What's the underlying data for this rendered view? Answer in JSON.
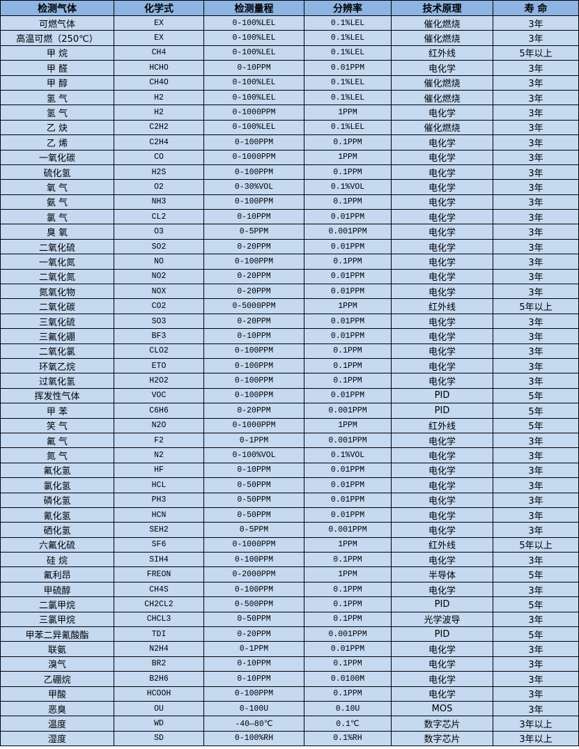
{
  "colors": {
    "header_bg": "#8db4e2",
    "row_bg": "#c5d9f1",
    "border": "#000000"
  },
  "table": {
    "headers": [
      "检测气体",
      "化学式",
      "检测量程",
      "分辨率",
      "技术原理",
      "寿 命"
    ],
    "rows": [
      [
        "可燃气体",
        "EX",
        "0-100%LEL",
        "0.1%LEL",
        "催化燃烧",
        "3年"
      ],
      [
        "高温可燃（250℃）",
        "EX",
        "0-100%LEL",
        "0.1%LEL",
        "催化燃烧",
        "3年"
      ],
      [
        "甲 烷",
        "CH4",
        "0-100%LEL",
        "0.1%LEL",
        "红外线",
        "5年以上"
      ],
      [
        "甲 醛",
        "HCHO",
        "0-10PPM",
        "0.01PPM",
        "电化学",
        "3年"
      ],
      [
        "甲 醇",
        "CH4O",
        "0-100%LEL",
        "0.1%LEL",
        "催化燃烧",
        "3年"
      ],
      [
        "氢 气",
        "H2",
        "0-100%LEL",
        "0.1%LEL",
        "催化燃烧",
        "3年"
      ],
      [
        "氢 气",
        "H2",
        "0-1000PPM",
        "1PPM",
        "电化学",
        "3年"
      ],
      [
        "乙 炔",
        "C2H2",
        "0-100%LEL",
        "0.1%LEL",
        "催化燃烧",
        "3年"
      ],
      [
        "乙 烯",
        "C2H4",
        "0-100PPM",
        "0.1PPM",
        "电化学",
        "3年"
      ],
      [
        "一氧化碳",
        "CO",
        "0-1000PPM",
        "1PPM",
        "电化学",
        "3年"
      ],
      [
        "硫化氢",
        "H2S",
        "0-100PPM",
        "0.1PPM",
        "电化学",
        "3年"
      ],
      [
        "氧 气",
        "O2",
        "0-30%VOL",
        "0.1%VOL",
        "电化学",
        "3年"
      ],
      [
        "氨 气",
        "NH3",
        "0-100PPM",
        "0.1PPM",
        "电化学",
        "3年"
      ],
      [
        "氯 气",
        "CL2",
        "0-10PPM",
        "0.01PPM",
        "电化学",
        "3年"
      ],
      [
        "臭 氧",
        "O3",
        "0-5PPM",
        "0.001PPM",
        "电化学",
        "3年"
      ],
      [
        "二氧化硫",
        "SO2",
        "0-20PPM",
        "0.01PPM",
        "电化学",
        "3年"
      ],
      [
        "一氧化氮",
        "NO",
        "0-100PPM",
        "0.1PPM",
        "电化学",
        "3年"
      ],
      [
        "二氧化氮",
        "NO2",
        "0-20PPM",
        "0.01PPM",
        "电化学",
        "3年"
      ],
      [
        "氮氧化物",
        "NOX",
        "0-20PPM",
        "0.01PPM",
        "电化学",
        "3年"
      ],
      [
        "二氧化碳",
        "CO2",
        "0-5000PPM",
        "1PPM",
        "红外线",
        "5年以上"
      ],
      [
        "三氧化硫",
        "SO3",
        "0-20PPM",
        "0.01PPM",
        "电化学",
        "3年"
      ],
      [
        "三氟化硼",
        "BF3",
        "0-10PPM",
        "0.01PPM",
        "电化学",
        "3年"
      ],
      [
        "二氧化氯",
        "CLO2",
        "0-100PPM",
        "0.1PPM",
        "电化学",
        "3年"
      ],
      [
        "环氧乙烷",
        "ETO",
        "0-100PPM",
        "0.1PPM",
        "电化学",
        "3年"
      ],
      [
        "过氧化氢",
        "H2O2",
        "0-100PPM",
        "0.1PPM",
        "电化学",
        "3年"
      ],
      [
        "挥发性气体",
        "VOC",
        "0-100PPM",
        "0.01PPM",
        "PID",
        "5年"
      ],
      [
        "甲 苯",
        "C6H6",
        "0-20PPM",
        "0.001PPM",
        "PID",
        "5年"
      ],
      [
        "笑 气",
        "N2O",
        "0-1000PPM",
        "1PPM",
        "红外线",
        "5年"
      ],
      [
        "氟 气",
        "F2",
        "0-1PPM",
        "0.001PPM",
        "电化学",
        "3年"
      ],
      [
        "氮 气",
        "N2",
        "0-100%VOL",
        "0.1%VOL",
        "电化学",
        "3年"
      ],
      [
        "氟化氢",
        "HF",
        "0-10PPM",
        "0.01PPM",
        "电化学",
        "3年"
      ],
      [
        "氯化氢",
        "HCL",
        "0-50PPM",
        "0.01PPM",
        "电化学",
        "3年"
      ],
      [
        "磷化氢",
        "PH3",
        "0-50PPM",
        "0.01PPM",
        "电化学",
        "3年"
      ],
      [
        "氰化氢",
        "HCN",
        "0-50PPM",
        "0.01PPM",
        "电化学",
        "3年"
      ],
      [
        "硒化氢",
        "SEH2",
        "0-5PPM",
        "0.001PPM",
        "电化学",
        "3年"
      ],
      [
        "六氟化硫",
        "SF6",
        "0-1000PPM",
        "1PPM",
        "红外线",
        "5年以上"
      ],
      [
        "硅 烷",
        "SIH4",
        "0-100PPM",
        "0.1PPM",
        "电化学",
        "3年"
      ],
      [
        "氟利昂",
        "FREON",
        "0-2000PPM",
        "1PPM",
        "半导体",
        "5年"
      ],
      [
        "甲硫醇",
        "CH4S",
        "0-100PPM",
        "0.1PPM",
        "电化学",
        "3年"
      ],
      [
        "二氯甲烷",
        "CH2CL2",
        "0-500PPM",
        "0.1PPM",
        "PID",
        "5年"
      ],
      [
        "三氯甲烷",
        "CHCL3",
        "0-50PPM",
        "0.1PPM",
        "光学波导",
        "3年"
      ],
      [
        "甲苯二异氰酸酯",
        "TDI",
        "0-20PPM",
        "0.001PPM",
        "PID",
        "5年"
      ],
      [
        "联氨",
        "N2H4",
        "0-1PPM",
        "0.01PPM",
        "电化学",
        "3年"
      ],
      [
        "溴气",
        "BR2",
        "0-10PPM",
        "0.1PPM",
        "电化学",
        "3年"
      ],
      [
        "乙硼烷",
        "B2H6",
        "0-10PPM",
        "0.0100M",
        "电化学",
        "3年"
      ],
      [
        "甲酸",
        "HCOOH",
        "0-100PPM",
        "0.1PPM",
        "电化学",
        "3年"
      ],
      [
        "恶臭",
        "OU",
        "0-100U",
        "0.10U",
        "MOS",
        "3年"
      ],
      [
        "温度",
        "WD",
        "-40—80℃",
        "0.1℃",
        "数字芯片",
        "3年以上"
      ],
      [
        "湿度",
        "SD",
        "0-100%RH",
        "0.1%RH",
        "数字芯片",
        "3年以上"
      ]
    ]
  }
}
